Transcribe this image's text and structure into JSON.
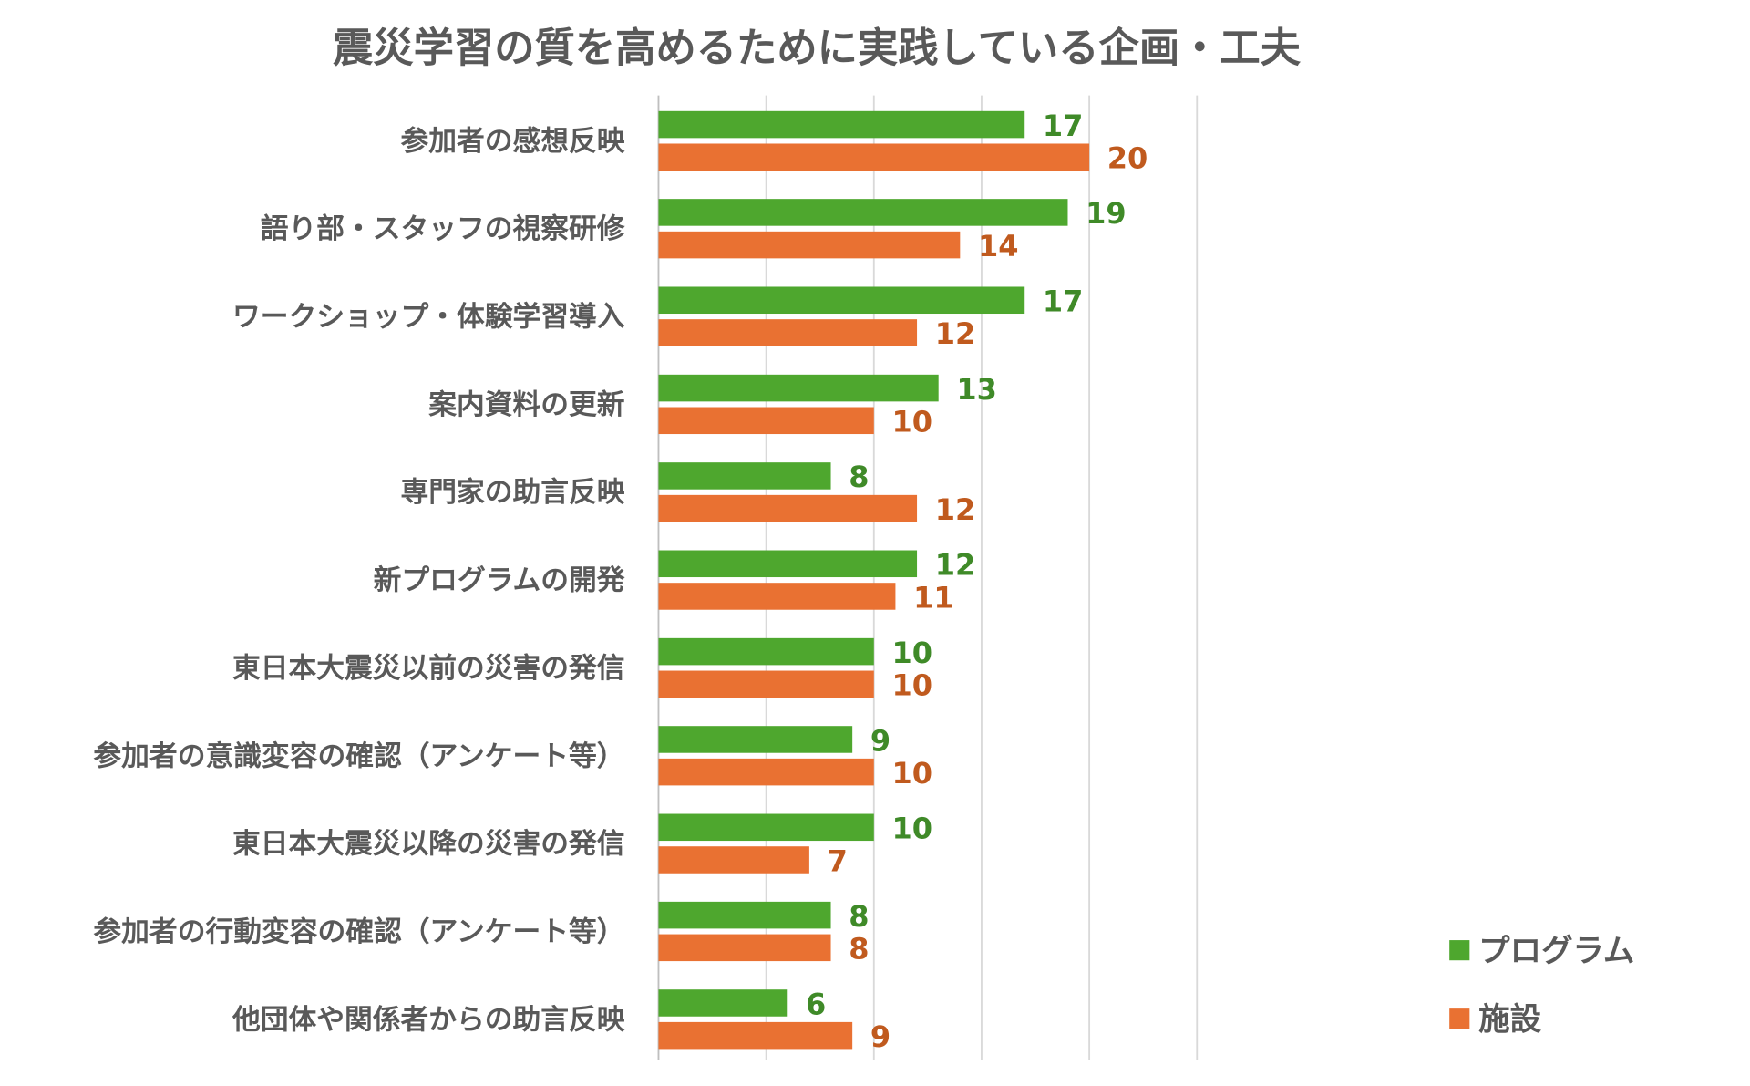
{
  "chart_data": {
    "type": "bar",
    "orientation": "horizontal",
    "title": "震災学習の質を高めるために実践している企画・工夫",
    "xlabel": "",
    "ylabel": "",
    "xlim": [
      0,
      25
    ],
    "grid": true,
    "legend_position": "bottom-right",
    "categories": [
      "参加者の感想反映",
      "語り部・スタッフの視察研修",
      "ワークショップ・体験学習導入",
      "案内資料の更新",
      "専門家の助言反映",
      "新プログラムの開発",
      "東日本大震災以前の災害の発信",
      "参加者の意識変容の確認（アンケート等）",
      "東日本大震災以降の災害の発信",
      "参加者の行動変容の確認（アンケート等）",
      "他団体や関係者からの助言反映"
    ],
    "series": [
      {
        "name": "プログラム",
        "color": "#4ea72e",
        "label_color": "#3f8a28",
        "values": [
          17,
          19,
          17,
          13,
          8,
          12,
          10,
          9,
          10,
          8,
          6
        ]
      },
      {
        "name": "施設",
        "color": "#e97132",
        "label_color": "#c05a1e",
        "values": [
          20,
          14,
          12,
          10,
          12,
          11,
          10,
          10,
          7,
          8,
          9
        ]
      }
    ]
  }
}
